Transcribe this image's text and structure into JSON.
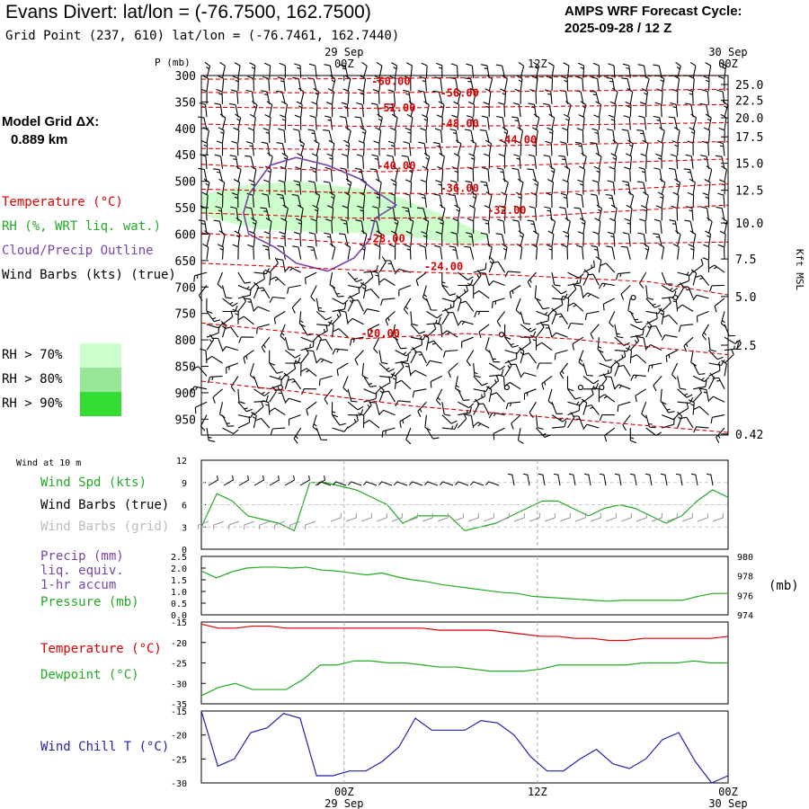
{
  "header": {
    "title": "Evans Divert:  lat/lon = (-76.7500, 162.7500)",
    "grid_point": "Grid Point (237, 610) lat/lon = (-76.7461, 162.7440)",
    "cycle_line1": "AMPS WRF Forecast Cycle:",
    "cycle_line2": "2025-09-28 / 12  Z",
    "model_grid_line1": "Model Grid ΔX:",
    "model_grid_line2": "0.889 km"
  },
  "time_axis": {
    "top_labels": [
      {
        "day": "29 Sep",
        "hour": "00Z",
        "t": 0.271
      },
      {
        "day": "",
        "hour": "12Z",
        "t": 0.638
      },
      {
        "day": "30 Sep",
        "hour": "00Z",
        "t": 1.0
      }
    ],
    "bottom_labels": [
      {
        "hour": "00Z",
        "day": "29 Sep",
        "t": 0.271
      },
      {
        "hour": "12Z",
        "day": "",
        "t": 0.638
      },
      {
        "hour": "00Z",
        "day": "30 Sep",
        "t": 1.0
      }
    ]
  },
  "sounding_legend": {
    "temperature": "Temperature (°C)",
    "rh": "RH (%, WRT liq. wat.)",
    "cloud": "Cloud/Precip Outline",
    "barbs": "Wind Barbs (kts) (true)",
    "rh_levels": [
      "RH > 70%",
      "RH > 80%",
      "RH > 90%"
    ],
    "rh_colors": [
      "#ccffcc",
      "#99e699",
      "#33dd33"
    ],
    "temp_color": "#dd0000",
    "rh_color": "#22aa22",
    "cloud_color": "#7744aa"
  },
  "panel_labels": {
    "wind10m_title": "Wind at 10 m",
    "wind_spd": "Wind Spd (kts)",
    "wind_barbs_true": "Wind Barbs (true)",
    "wind_barbs_grid": "Wind Barbs (grid)",
    "precip_line1": "Precip (mm)",
    "precip_line2": "liq. equiv.",
    "precip_line3": "1-hr accum",
    "pressure": "Pressure (mb)",
    "pressure_unit": "(mb)",
    "temperature": "Temperature (°C)",
    "dewpoint": "Dewpoint (°C)",
    "windchill": "Wind Chill T (°C)"
  },
  "chart_data": [
    {
      "type": "contour",
      "title": "Time-height cross section",
      "ylabel": "P (mb)",
      "y2label": "Kft MSL",
      "ylim": [
        300,
        980
      ],
      "pressure_ticks": [
        300,
        350,
        400,
        450,
        500,
        550,
        600,
        650,
        700,
        750,
        800,
        850,
        900,
        950
      ],
      "kft_ticks": [
        {
          "label": "25.0",
          "p": 317
        },
        {
          "label": "22.5",
          "p": 347
        },
        {
          "label": "20.0",
          "p": 380
        },
        {
          "label": "17.5",
          "p": 416
        },
        {
          "label": "15.0",
          "p": 466
        },
        {
          "label": "12.5",
          "p": 517
        },
        {
          "label": "10.0",
          "p": 579
        },
        {
          "label": "7.5",
          "p": 647
        },
        {
          "label": "5.0",
          "p": 718
        },
        {
          "label": "2.5",
          "p": 810
        },
        {
          "label": "0.42",
          "p": 978
        }
      ],
      "temperature_contours": [
        {
          "label": "-60.00",
          "label_t": 0.36,
          "label_p": 318,
          "points": [
            [
              0,
              307
            ],
            [
              0.3,
              306
            ],
            [
              0.6,
              303
            ],
            [
              1.0,
              300
            ]
          ]
        },
        {
          "label": "-56.00",
          "label_t": 0.49,
          "label_p": 340,
          "points": [
            [
              0,
              332
            ],
            [
              0.3,
              333
            ],
            [
              0.6,
              330
            ],
            [
              1.0,
              326
            ]
          ]
        },
        {
          "label": "-52.00",
          "label_t": 0.37,
          "label_p": 368,
          "points": [
            [
              0,
              360
            ],
            [
              0.3,
              362
            ],
            [
              0.6,
              359
            ],
            [
              1.0,
              355
            ]
          ]
        },
        {
          "label": "-48.00",
          "label_t": 0.49,
          "label_p": 398,
          "points": [
            [
              0,
              392
            ],
            [
              0.3,
              396
            ],
            [
              0.6,
              395
            ],
            [
              1.0,
              389
            ]
          ]
        },
        {
          "label": "-44.00",
          "label_t": 0.6,
          "label_p": 428,
          "points": [
            [
              0,
              438
            ],
            [
              0.3,
              440
            ],
            [
              0.6,
              432
            ],
            [
              1.0,
              425
            ]
          ]
        },
        {
          "label": "-40.00",
          "label_t": 0.37,
          "label_p": 478,
          "points": [
            [
              0,
              468
            ],
            [
              0.2,
              478
            ],
            [
              0.35,
              482
            ],
            [
              0.6,
              470
            ],
            [
              1.0,
              458
            ]
          ]
        },
        {
          "label": "-36.00",
          "label_t": 0.49,
          "label_p": 520,
          "points": [
            [
              0,
              515
            ],
            [
              0.3,
              522
            ],
            [
              0.6,
              525
            ],
            [
              1.0,
              505
            ]
          ]
        },
        {
          "label": "-32.00",
          "label_t": 0.58,
          "label_p": 562,
          "points": [
            [
              0,
              560
            ],
            [
              0.3,
              570
            ],
            [
              0.6,
              568
            ],
            [
              1.0,
              545
            ]
          ]
        },
        {
          "label": "-28.00",
          "label_t": 0.35,
          "label_p": 615,
          "points": [
            [
              0,
              598
            ],
            [
              0.3,
              618
            ],
            [
              0.6,
              620
            ],
            [
              1.0,
              615
            ]
          ]
        },
        {
          "label": "-24.00",
          "label_t": 0.46,
          "label_p": 668,
          "points": [
            [
              0,
              655
            ],
            [
              0.3,
              668
            ],
            [
              0.6,
              678
            ],
            [
              0.85,
              690
            ],
            [
              1.0,
              715
            ]
          ]
        },
        {
          "label": "-20.00",
          "label_t": 0.34,
          "label_p": 795,
          "points": [
            [
              0,
              768
            ],
            [
              0.3,
              798
            ],
            [
              0.5,
              788
            ],
            [
              0.7,
              798
            ],
            [
              1.0,
              828
            ]
          ]
        },
        {
          "label": "",
          "label_t": 0,
          "label_p": 0,
          "points": [
            [
              0,
              878
            ],
            [
              0.2,
              900
            ],
            [
              0.4,
              925
            ],
            [
              0.7,
              950
            ],
            [
              1.0,
              975
            ]
          ]
        }
      ],
      "rh_region": {
        "level": "RH > 70%",
        "points": [
          [
            0,
            525
          ],
          [
            0.08,
            508
          ],
          [
            0.18,
            500
          ],
          [
            0.25,
            508
          ],
          [
            0.35,
            520
          ],
          [
            0.45,
            560
          ],
          [
            0.55,
            605
          ],
          [
            0.5,
            622
          ],
          [
            0.4,
            605
          ],
          [
            0.3,
            598
          ],
          [
            0.2,
            595
          ],
          [
            0.1,
            590
          ],
          [
            0.03,
            572
          ],
          [
            0,
            560
          ]
        ]
      },
      "cloud_outline": [
        [
          0.09,
          525
        ],
        [
          0.13,
          470
        ],
        [
          0.18,
          455
        ],
        [
          0.24,
          470
        ],
        [
          0.3,
          495
        ],
        [
          0.34,
          525
        ],
        [
          0.37,
          545
        ],
        [
          0.33,
          570
        ],
        [
          0.32,
          610
        ],
        [
          0.29,
          645
        ],
        [
          0.24,
          670
        ],
        [
          0.18,
          655
        ],
        [
          0.14,
          625
        ],
        [
          0.09,
          600
        ],
        [
          0.08,
          560
        ]
      ]
    },
    {
      "type": "line",
      "title": "Wind at 10 m",
      "ylim": [
        0,
        12
      ],
      "yticks": [
        0,
        3,
        6,
        9,
        12
      ],
      "series": [
        {
          "name": "Wind Spd (kts)",
          "values": [
            3,
            7.5,
            6.5,
            4.5,
            4,
            3.5,
            2.5,
            9,
            9,
            8.5,
            8,
            7,
            6,
            3.5,
            4.5,
            4.5,
            4.5,
            2.5,
            3,
            3.5,
            4.5,
            5.5,
            6.5,
            6.5,
            5.5,
            4.5,
            5.5,
            6,
            5.5,
            4.5,
            3.5,
            4.5,
            6.5,
            8,
            7
          ]
        }
      ]
    },
    {
      "type": "line",
      "title": "Precip / Pressure",
      "ylim": [
        0,
        2.5
      ],
      "yticks": [
        0.0,
        0.5,
        1.0,
        1.5,
        2.0,
        2.5
      ],
      "y2lim": [
        974,
        980
      ],
      "y2ticks": [
        974,
        976,
        978,
        980
      ],
      "series": [
        {
          "name": "Pressure (mb)",
          "values": [
            978.5,
            977.8,
            978.4,
            978.8,
            978.9,
            978.9,
            978.8,
            978.9,
            978.6,
            978.5,
            978.3,
            978.1,
            978.3,
            977.9,
            977.6,
            977.4,
            977.1,
            976.9,
            976.7,
            976.5,
            976.3,
            976.2,
            975.9,
            975.8,
            975.7,
            975.6,
            975.5,
            975.4,
            975.5,
            975.5,
            975.5,
            975.5,
            975.5,
            975.9,
            976.2,
            976.2
          ]
        }
      ]
    },
    {
      "type": "line",
      "title": "Temperature / Dewpoint",
      "ylim": [
        -35,
        -15
      ],
      "yticks": [
        -35,
        -30,
        -25,
        -20,
        -15
      ],
      "series": [
        {
          "name": "Temperature (°C)",
          "values": [
            -15.5,
            -16.5,
            -16.5,
            -16.0,
            -16.0,
            -16.5,
            -16.5,
            -16.5,
            -16.5,
            -16.5,
            -16.5,
            -16.5,
            -16.5,
            -16.5,
            -17.0,
            -17.0,
            -17.0,
            -17.0,
            -17.5,
            -18.0,
            -18.5,
            -18.5,
            -19.0,
            -19.0,
            -19.5,
            -19.5,
            -19.0,
            -19.0,
            -19.0,
            -19.0,
            -19.0,
            -18.5
          ]
        },
        {
          "name": "Dewpoint (°C)",
          "values": [
            -33,
            -31,
            -30,
            -31.5,
            -31.5,
            -31.5,
            -29,
            -25.5,
            -25.5,
            -24.5,
            -24.5,
            -25,
            -25,
            -25.5,
            -26,
            -26,
            -26.5,
            -27,
            -27,
            -27,
            -26.5,
            -25.5,
            -25.5,
            -25.5,
            -25.5,
            -25.5,
            -25,
            -25,
            -25,
            -24.5,
            -25,
            -25
          ]
        }
      ]
    },
    {
      "type": "line",
      "title": "Wind Chill",
      "ylim": [
        -30,
        -15
      ],
      "yticks": [
        -30,
        -25,
        -20,
        -15
      ],
      "series": [
        {
          "name": "Wind Chill T (°C)",
          "values": [
            -15,
            -26.5,
            -25,
            -19.5,
            -18.5,
            -15.5,
            -16.5,
            -28.5,
            -28.5,
            -27.5,
            -27.5,
            -25.5,
            -22.5,
            -16.5,
            -19,
            -19,
            -19,
            -17,
            -17.5,
            -20,
            -24.5,
            -27.5,
            -27.5,
            -25,
            -23,
            -26,
            -27,
            -25,
            -21,
            -19.5,
            -25.5,
            -30,
            -28.5
          ]
        }
      ]
    }
  ]
}
